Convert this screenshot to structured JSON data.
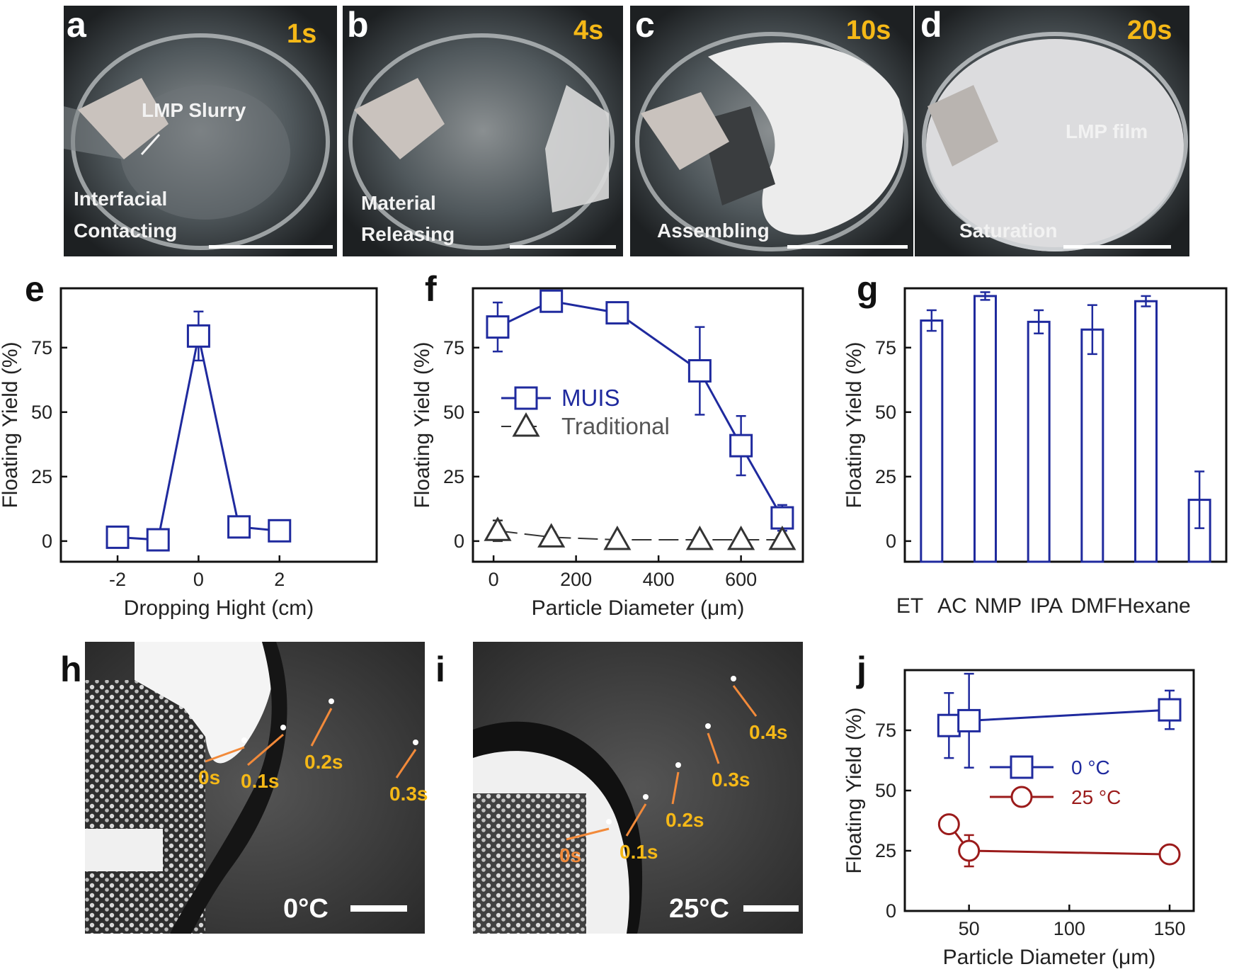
{
  "photos": [
    {
      "letter": "a",
      "time": "1s",
      "labels": [
        "LMP Slurry",
        "Interfacial",
        "Contacting"
      ]
    },
    {
      "letter": "b",
      "time": "4s",
      "labels": [
        "Material",
        "Releasing"
      ]
    },
    {
      "letter": "c",
      "time": "10s",
      "labels": [
        "Assembling"
      ]
    },
    {
      "letter": "d",
      "time": "20s",
      "labels": [
        "LMP  film",
        "Saturation"
      ]
    }
  ],
  "micro": [
    {
      "letter": "h",
      "temp": "0°C",
      "times": [
        {
          "t": "0s",
          "color": "#f5b817"
        },
        {
          "t": "0.1s",
          "color": "#f5b817"
        },
        {
          "t": "0.2s",
          "color": "#f5b817"
        },
        {
          "t": "0.3s",
          "color": "#f5b817"
        }
      ]
    },
    {
      "letter": "i",
      "temp": "25°C",
      "times": [
        {
          "t": "0s",
          "color": "#f28a3a"
        },
        {
          "t": "0.1s",
          "color": "#f5b817"
        },
        {
          "t": "0.2s",
          "color": "#f5b817"
        },
        {
          "t": "0.3s",
          "color": "#f5b817"
        },
        {
          "t": "0.4s",
          "color": "#f5b817"
        }
      ]
    }
  ],
  "colors": {
    "blue": "#1f2a9e",
    "red": "#9b1b1b",
    "black": "#333333",
    "photo_time": "#f5b817",
    "arrow_orange": "#f28a3a"
  },
  "chart_data": [
    {
      "panel": "e",
      "type": "line",
      "xlabel": "Dropping Hight (cm)",
      "ylabel": "Floating Yield (%)",
      "xlim": [
        -3.4,
        4.4
      ],
      "ylim": [
        -8,
        98
      ],
      "xticks": [
        -2,
        0,
        2
      ],
      "yticks": [
        0,
        25,
        50,
        75
      ],
      "series": [
        {
          "name": "",
          "color": "#1f2a9e",
          "marker": "square",
          "x": [
            -2,
            -1,
            0,
            1,
            2
          ],
          "y": [
            1.5,
            0.5,
            79.5,
            5.5,
            4
          ],
          "err": [
            2.5,
            2,
            9.5,
            1.5,
            3
          ]
        }
      ]
    },
    {
      "panel": "f",
      "type": "line",
      "xlabel": "Particle Diameter (μm)",
      "ylabel": "Floating Yield (%)",
      "xlim": [
        -50,
        750
      ],
      "ylim": [
        -8,
        98
      ],
      "xticks": [
        0,
        200,
        400,
        600
      ],
      "yticks": [
        0,
        25,
        50,
        75
      ],
      "legend": "center-left",
      "series": [
        {
          "name": "MUIS",
          "color": "#1f2a9e",
          "marker": "square",
          "x": [
            10,
            140,
            300,
            500,
            600,
            700
          ],
          "y": [
            83,
            93,
            88.5,
            66,
            37,
            9
          ],
          "err": [
            9.5,
            4,
            2,
            17,
            11.5,
            5
          ]
        },
        {
          "name": "Traditional",
          "color": "#333333",
          "marker": "triangle",
          "dashed": true,
          "x": [
            10,
            140,
            300,
            500,
            600,
            700
          ],
          "y": [
            4,
            1.5,
            0.5,
            0.5,
            0.5,
            0.5
          ],
          "err": [
            4,
            2,
            0,
            0,
            0,
            0
          ]
        }
      ]
    },
    {
      "panel": "g",
      "type": "bar",
      "ylabel": "Floating Yield (%)",
      "ylim": [
        -8,
        98
      ],
      "yticks": [
        0,
        25,
        50,
        75
      ],
      "categories": [
        "ET",
        "AC",
        "NMP",
        "IPA",
        "DMF",
        "Hexane"
      ],
      "values": [
        85.5,
        95,
        85,
        82,
        93,
        16
      ],
      "err": [
        4,
        1.5,
        4.5,
        9.5,
        2,
        11
      ],
      "color": "#1f2a9e"
    },
    {
      "panel": "j",
      "type": "line",
      "xlabel": "Particle Diameter (μm)",
      "ylabel": "Floating Yield (%)",
      "xlim": [
        18,
        162
      ],
      "ylim": [
        0,
        100
      ],
      "xticks": [
        50,
        100,
        150
      ],
      "yticks": [
        0,
        25,
        50,
        75
      ],
      "legend": "center-right",
      "series": [
        {
          "name": "0 °C",
          "color": "#1f2a9e",
          "marker": "square",
          "x": [
            40,
            50,
            150
          ],
          "y": [
            77,
            79,
            83.5
          ],
          "err": [
            13.5,
            19.5,
            8
          ]
        },
        {
          "name": "25 °C",
          "color": "#9b1b1b",
          "marker": "circle",
          "x": [
            40,
            50,
            150
          ],
          "y": [
            36,
            25,
            23.5
          ],
          "err": [
            2.5,
            6.5,
            3.5
          ]
        }
      ]
    }
  ]
}
